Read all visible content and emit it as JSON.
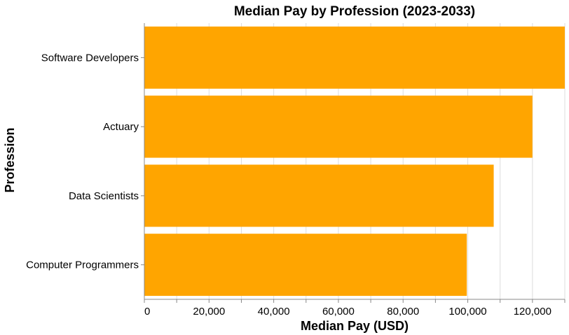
{
  "chart_data": {
    "type": "bar",
    "orientation": "horizontal",
    "title": "Median Pay by Profession (2023-2033)",
    "xlabel": "Median Pay (USD)",
    "ylabel": "Profession",
    "categories": [
      "Software Developers",
      "Actuary",
      "Data Scientists",
      "Computer Programmers"
    ],
    "values": [
      130160,
      120000,
      108020,
      99700
    ],
    "xlim": [
      0,
      130000
    ],
    "xticks": [
      0,
      20000,
      40000,
      60000,
      80000,
      100000,
      120000
    ],
    "xtick_labels": [
      "0",
      "20,000",
      "40,000",
      "60,000",
      "80,000",
      "100,000",
      "120,000"
    ],
    "grid": true,
    "bar_color": "#FFA500",
    "grid_color": "#dddddd",
    "axis_color": "#888888"
  }
}
